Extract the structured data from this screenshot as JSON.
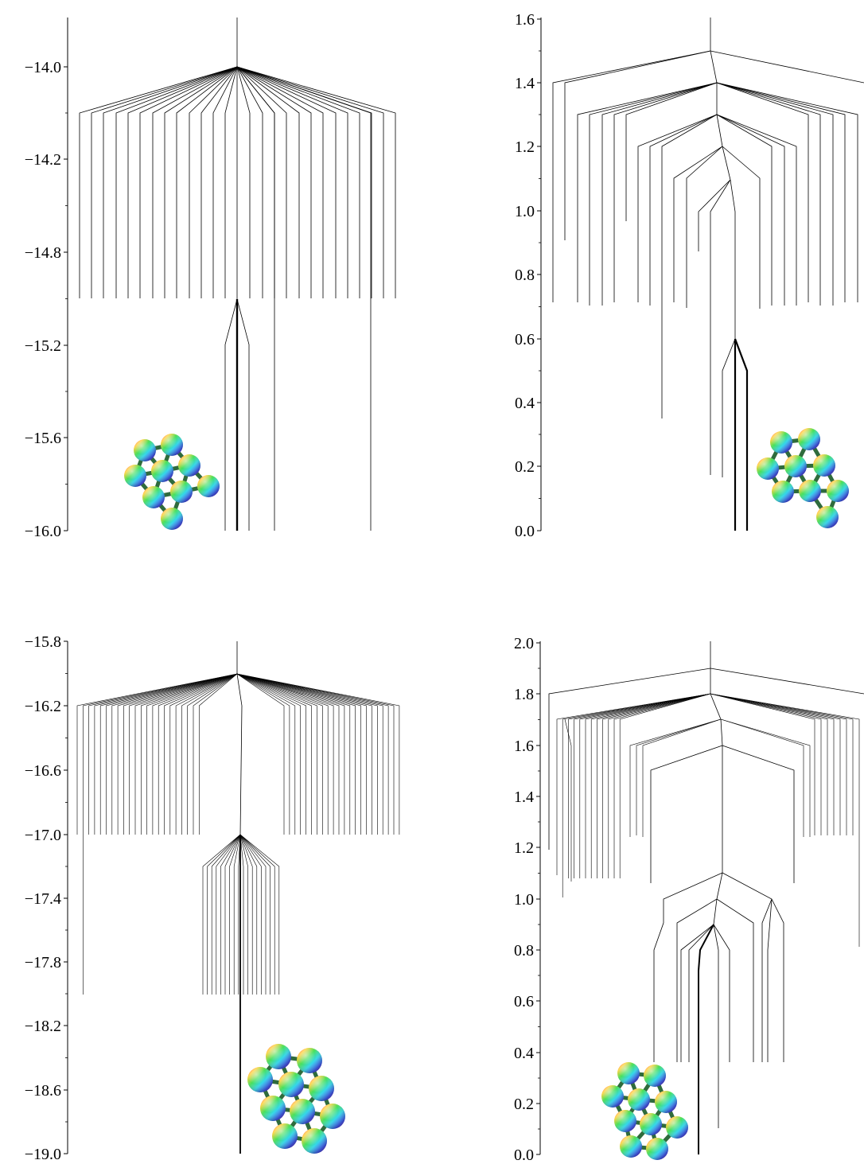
{
  "figure": {
    "panels": [
      {
        "id": "top-left",
        "y_tick_labels": [
          "−14.0",
          "−14.2",
          "−14.8",
          "−15.2",
          "−15.6",
          "−16.0"
        ],
        "chart_data": {
          "type": "dendrogram",
          "title": "",
          "xlabel": "",
          "ylabel": "",
          "y_ticks": [
            -14.0,
            -14.2,
            -14.8,
            -15.2,
            -15.6,
            -16.0
          ],
          "ylim": [
            -16.0,
            -13.8
          ],
          "axis_note": "tick spacing is non-uniform (0.2 then 0.6 then 0.4 steps)",
          "root_level": -14.0,
          "fan_levels": [
            -14.2
          ],
          "branch_count_at_top": 28,
          "ground_state_level": -15.0,
          "grid": false,
          "legend": "none",
          "inset": "cluster-image"
        }
      },
      {
        "id": "top-right",
        "y_tick_labels": [
          "1.6",
          "1.4",
          "1.2",
          "1.0",
          "0.8",
          "0.6",
          "0.4",
          "0.2",
          "0.0"
        ],
        "chart_data": {
          "type": "dendrogram",
          "title": "",
          "xlabel": "",
          "ylabel": "",
          "y_ticks": [
            1.6,
            1.4,
            1.2,
            1.0,
            0.8,
            0.6,
            0.4,
            0.2,
            0.0
          ],
          "ylim": [
            0.0,
            1.6
          ],
          "node_levels": [
            1.5,
            1.4,
            1.3,
            1.2,
            1.1,
            1.0,
            0.6
          ],
          "ground_state_level": 0.6,
          "grid": false,
          "legend": "none",
          "inset": "cluster-image"
        }
      },
      {
        "id": "bottom-left",
        "y_tick_labels": [
          "−15.8",
          "−16.2",
          "−16.6",
          "−17.0",
          "−17.4",
          "−17.8",
          "−18.2",
          "−18.6",
          "−19.0"
        ],
        "chart_data": {
          "type": "dendrogram",
          "title": "",
          "xlabel": "",
          "ylabel": "",
          "y_ticks": [
            -15.8,
            -16.2,
            -16.6,
            -17.0,
            -17.4,
            -17.8,
            -18.2,
            -18.6,
            -19.0
          ],
          "ylim": [
            -19.0,
            -15.8
          ],
          "root_level": -16.0,
          "fan_levels": [
            -16.2,
            -17.2
          ],
          "node_levels": [
            -16.0,
            -17.0
          ],
          "branch_count_at_top": 44,
          "branch_count_second_fan": 19,
          "ground_state_level": -17.0,
          "grid": false,
          "legend": "none",
          "inset": "cluster-image"
        }
      },
      {
        "id": "bottom-right",
        "y_tick_labels": [
          "2.0",
          "1.8",
          "1.6",
          "1.4",
          "1.2",
          "1.0",
          "0.8",
          "0.6",
          "0.4",
          "0.2",
          "0.0"
        ],
        "chart_data": {
          "type": "dendrogram",
          "title": "",
          "xlabel": "",
          "ylabel": "",
          "y_ticks": [
            2.0,
            1.8,
            1.6,
            1.4,
            1.2,
            1.0,
            0.8,
            0.6,
            0.4,
            0.2,
            0.0
          ],
          "ylim": [
            0.0,
            2.0
          ],
          "node_levels": [
            1.9,
            1.8,
            1.7,
            1.6,
            1.1,
            1.0,
            0.9
          ],
          "ground_state_level": 0.9,
          "grid": false,
          "legend": "none",
          "inset": "cluster-image"
        }
      }
    ]
  }
}
